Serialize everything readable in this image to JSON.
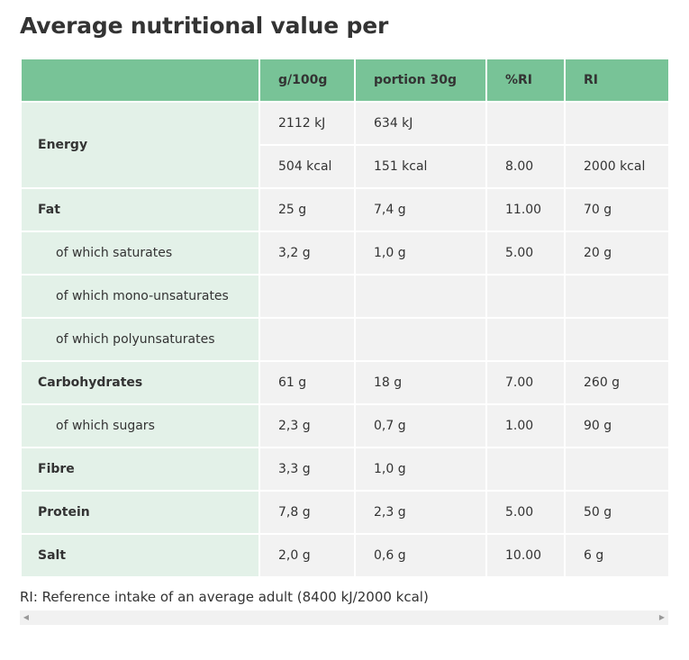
{
  "title": "Average nutritional value per",
  "header": {
    "col0": "",
    "col1": "g/100g",
    "col2": "portion 30g",
    "col3": "%RI",
    "col4": "RI"
  },
  "rows": {
    "energy_label": "Energy",
    "energy_kj": {
      "g100": "2112 kJ",
      "portion": "634 kJ",
      "pri": "",
      "ri": ""
    },
    "energy_kcal": {
      "g100": "504 kcal",
      "portion": "151 kcal",
      "pri": "8.00",
      "ri": "2000 kcal"
    },
    "fat": {
      "label": "Fat",
      "g100": "25 g",
      "portion": "7,4 g",
      "pri": "11.00",
      "ri": "70 g"
    },
    "saturates": {
      "label": "of which saturates",
      "g100": "3,2 g",
      "portion": "1,0 g",
      "pri": "5.00",
      "ri": "20 g"
    },
    "mono": {
      "label": "of which mono-unsaturates",
      "g100": "",
      "portion": "",
      "pri": "",
      "ri": ""
    },
    "poly": {
      "label": "of which polyunsaturates",
      "g100": "",
      "portion": "",
      "pri": "",
      "ri": ""
    },
    "carbs": {
      "label": "Carbohydrates",
      "g100": "61 g",
      "portion": "18 g",
      "pri": "7.00",
      "ri": "260 g"
    },
    "sugars": {
      "label": "of which sugars",
      "g100": "2,3 g",
      "portion": "0,7 g",
      "pri": "1.00",
      "ri": "90 g"
    },
    "fibre": {
      "label": "Fibre",
      "g100": "3,3 g",
      "portion": "1,0 g",
      "pri": "",
      "ri": ""
    },
    "protein": {
      "label": "Protein",
      "g100": "7,8 g",
      "portion": "2,3 g",
      "pri": "5.00",
      "ri": "50 g"
    },
    "salt": {
      "label": "Salt",
      "g100": "2,0 g",
      "portion": "0,6 g",
      "pri": "10.00",
      "ri": "6 g"
    }
  },
  "footnote": "RI: Reference intake of an average adult (8400 kJ/2000 kcal)",
  "scrollbar": {
    "left_icon": "scroll-left-arrow-icon",
    "right_icon": "scroll-right-arrow-icon"
  },
  "colors": {
    "header_bg": "#78c397",
    "label_bg": "#e3f1e8",
    "value_bg": "#f2f2f2",
    "text": "#333333"
  }
}
